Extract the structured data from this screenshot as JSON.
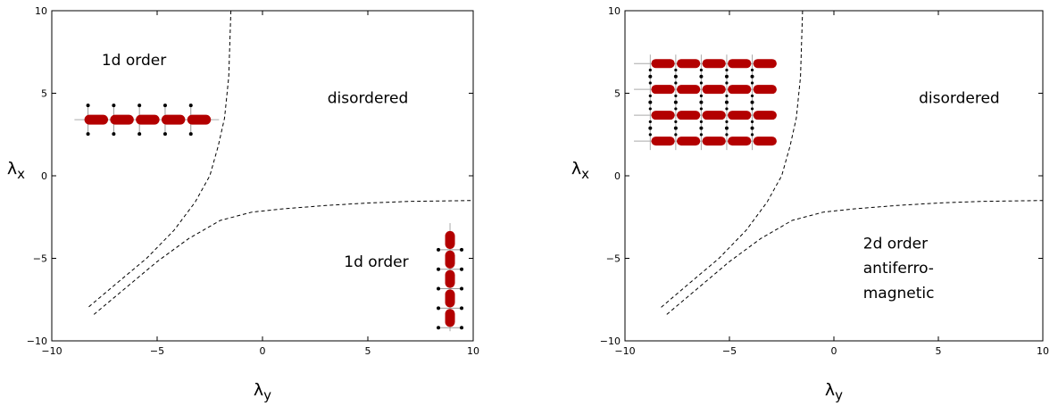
{
  "chart_data": [
    {
      "type": "line",
      "panel": "left",
      "xlabel": "λ",
      "xlabel_sub": "y",
      "ylabel": "λ",
      "ylabel_sub": "x",
      "xlim": [
        -10,
        10
      ],
      "ylim": [
        -10,
        10
      ],
      "xticks": [
        -10,
        -5,
        0,
        5,
        10
      ],
      "yticks": [
        -10,
        -5,
        0,
        5,
        10
      ],
      "xtick_labels": [
        "−10",
        "−5",
        "0",
        "5",
        "10"
      ],
      "ytick_labels": [
        "−10",
        "−5",
        "0",
        "5",
        "10"
      ],
      "grid": false,
      "series": [
        {
          "style": "dashed",
          "x": [
            -1.5,
            -1.6,
            -1.8,
            -2.1,
            -2.5,
            -3.2,
            -4.2,
            -5.5,
            -7,
            -8.3
          ],
          "y": [
            10,
            6,
            3.5,
            1.8,
            0,
            -1.6,
            -3.3,
            -5,
            -6.6,
            -8
          ]
        },
        {
          "style": "dashed",
          "x": [
            -8,
            -6.5,
            -5,
            -3.5,
            -2,
            -0.5,
            1,
            3,
            5,
            7,
            10
          ],
          "y": [
            -8.4,
            -6.8,
            -5.2,
            -3.8,
            -2.7,
            -2.2,
            -2,
            -1.8,
            -1.65,
            -1.55,
            -1.5
          ]
        }
      ],
      "annotations": [
        {
          "text": "1d order",
          "x": -6.1,
          "y": 6.7
        },
        {
          "text": "disordered",
          "x": 5,
          "y": 4.4
        },
        {
          "text": "1d order",
          "x": 5.4,
          "y": -5.5
        }
      ],
      "insets": [
        {
          "kind": "horizontal-chain",
          "count": 5,
          "x_range": [
            -8.5,
            -2.4
          ],
          "y": 3.4,
          "color": "#b30000"
        },
        {
          "kind": "vertical-chain",
          "count": 5,
          "x": 8.9,
          "y_range": [
            -9.2,
            -3.3
          ],
          "color": "#b30000"
        }
      ]
    },
    {
      "type": "line",
      "panel": "right",
      "xlabel": "λ",
      "xlabel_sub": "y",
      "ylabel": "λ",
      "ylabel_sub": "x",
      "xlim": [
        -10,
        10
      ],
      "ylim": [
        -10,
        10
      ],
      "xticks": [
        -10,
        -5,
        0,
        5,
        10
      ],
      "yticks": [
        -10,
        -5,
        0,
        5,
        10
      ],
      "xtick_labels": [
        "−10",
        "−5",
        "0",
        "5",
        "10"
      ],
      "ytick_labels": [
        "−10",
        "−5",
        "0",
        "5",
        "10"
      ],
      "grid": false,
      "series": [
        {
          "style": "dashed",
          "x": [
            -1.5,
            -1.6,
            -1.8,
            -2.1,
            -2.5,
            -3.2,
            -4.2,
            -5.5,
            -7,
            -8.3
          ],
          "y": [
            10,
            6,
            3.5,
            1.8,
            0,
            -1.6,
            -3.3,
            -5,
            -6.6,
            -8
          ]
        },
        {
          "style": "dashed",
          "x": [
            -8,
            -6.5,
            -5,
            -3.5,
            -2,
            -0.5,
            1,
            3,
            5,
            7,
            10
          ],
          "y": [
            -8.4,
            -6.8,
            -5.2,
            -3.8,
            -2.7,
            -2.2,
            -2,
            -1.8,
            -1.65,
            -1.55,
            -1.5
          ]
        }
      ],
      "annotations": [
        {
          "text": "disordered",
          "x": 6,
          "y": 4.4
        },
        {
          "text": "2d order",
          "x": 1.4,
          "y": -4.4,
          "anchor": "start"
        },
        {
          "text": "antiferro-",
          "x": 1.4,
          "y": -5.9,
          "anchor": "start"
        },
        {
          "text": "magnetic",
          "x": 1.4,
          "y": -7.4,
          "anchor": "start"
        }
      ],
      "insets": [
        {
          "kind": "2d-lattice",
          "rows": 4,
          "cols": 5,
          "x_range": [
            -9.4,
            -3.3
          ],
          "y_range": [
            2.1,
            6.8
          ],
          "color": "#b30000"
        }
      ]
    }
  ]
}
